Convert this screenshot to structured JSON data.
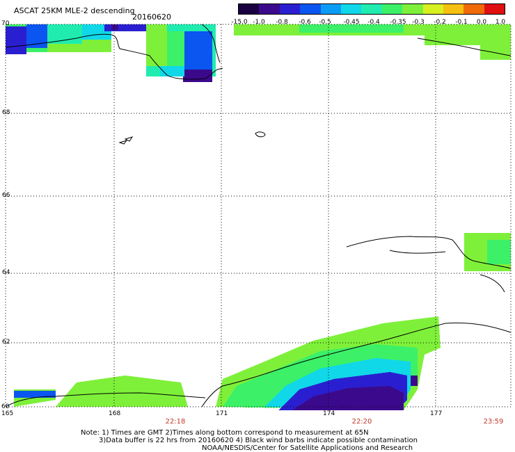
{
  "title": "ASCAT 25KM MLE-2 descending",
  "date": "20160620",
  "colorbar": {
    "labels": [
      "-15.0",
      "-1.0",
      "-0.8",
      "-0.6",
      "-0.5",
      "-0.45",
      "-0.4",
      "-0.35",
      "-0.3",
      "-0.2",
      "-0.1",
      "0.0",
      "1.0"
    ],
    "colors": [
      "#1a0040",
      "#3b0a8c",
      "#2a1fd0",
      "#0b55f0",
      "#0a9cf5",
      "#10d8e8",
      "#20ecb0",
      "#3cf068",
      "#7ef03a",
      "#d8f020",
      "#f5c010",
      "#f06a08",
      "#e01010"
    ]
  },
  "latitudes": [
    "70",
    "68",
    "66",
    "64",
    "62",
    "60"
  ],
  "longitudes": [
    "165",
    "168",
    "171",
    "174",
    "177"
  ],
  "times": [
    "22:18",
    "22:20",
    "23:59"
  ],
  "notes": [
    "Note: 1) Times are GMT 2)Times along bottom correspond to measurement at 65N",
    "3)Data buffer is 22 hrs from 20160620 4) Black wind barbs indicate possible contamination",
    "NOAA/NESDIS/Center for Satellite Applications and Research"
  ]
}
